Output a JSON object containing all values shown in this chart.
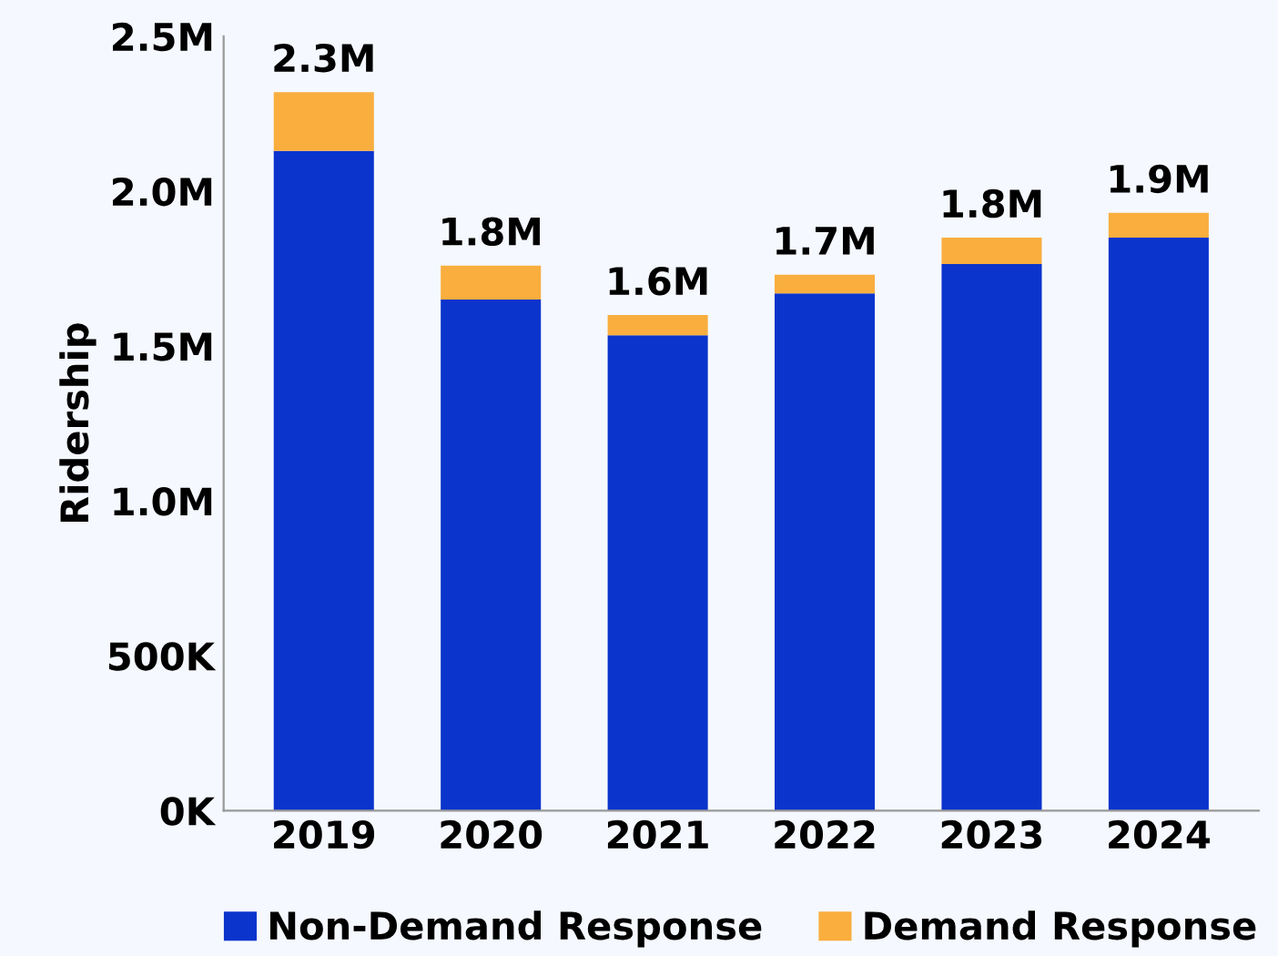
{
  "chart_data": {
    "type": "bar",
    "ylabel": "Ridership",
    "stacked": true,
    "categories": [
      "2019",
      "2020",
      "2021",
      "2022",
      "2023",
      "2024"
    ],
    "series": [
      {
        "name": "Non-Demand Response",
        "color": "#0a34cc",
        "values": [
          2130000,
          1650000,
          1535000,
          1670000,
          1765000,
          1850000
        ]
      },
      {
        "name": "Demand Response",
        "color": "#f9ae3e",
        "values": [
          190000,
          110000,
          65000,
          60000,
          85000,
          80000
        ]
      }
    ],
    "totals": [
      "2.3M",
      "1.8M",
      "1.6M",
      "1.7M",
      "1.8M",
      "1.9M"
    ],
    "ylim": [
      0,
      2500000
    ],
    "yticks": [
      {
        "value": 0,
        "label": "0K"
      },
      {
        "value": 500000,
        "label": "500K"
      },
      {
        "value": 1000000,
        "label": "1.0M"
      },
      {
        "value": 1500000,
        "label": "1.5M"
      },
      {
        "value": 2000000,
        "label": "2.0M"
      },
      {
        "value": 2500000,
        "label": "2.5M"
      }
    ],
    "grid": false,
    "legend": "bottom"
  }
}
